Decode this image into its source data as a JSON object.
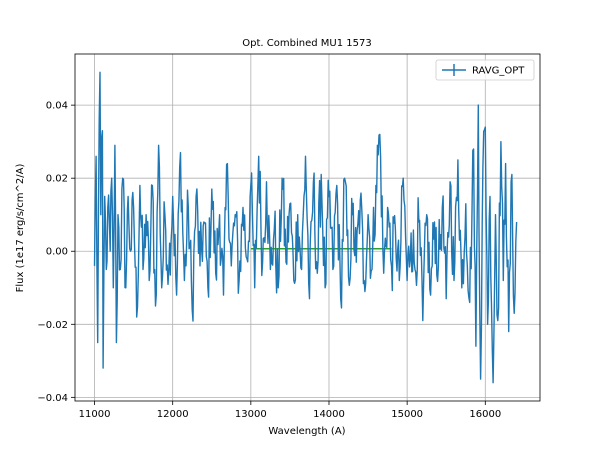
{
  "chart_data": {
    "type": "line",
    "title": "Opt. Combined MU1 1573",
    "xlabel": "Wavelength (A)",
    "ylabel": "Flux (1e17 erg/s/cm^2/A)",
    "xlim": [
      10750,
      16700
    ],
    "ylim": [
      -0.041,
      0.054
    ],
    "xticks": [
      11000,
      12000,
      13000,
      14000,
      15000,
      16000
    ],
    "yticks": [
      -0.04,
      -0.02,
      0.0,
      0.02,
      0.04
    ],
    "xtick_labels": [
      "11000",
      "12000",
      "13000",
      "14000",
      "15000",
      "16000"
    ],
    "ytick_labels": [
      "−0.04",
      "−0.02",
      "0.00",
      "0.02",
      "0.04"
    ],
    "grid": true,
    "legend_position": "upper right",
    "series": [
      {
        "name": "RAVG_OPT",
        "color": "#1f77b4",
        "x_range": [
          11000,
          16400
        ],
        "noise_amplitude": 0.012,
        "values": [
          [
            11000,
            -0.004
          ],
          [
            11020,
            0.026
          ],
          [
            11040,
            -0.025
          ],
          [
            11060,
            0.036
          ],
          [
            11070,
            0.049
          ],
          [
            11080,
            0.01
          ],
          [
            11100,
            0.033
          ],
          [
            11110,
            -0.032
          ],
          [
            11130,
            0.015
          ],
          [
            11150,
            -0.005
          ],
          [
            11170,
            0.012
          ],
          [
            11200,
            0.0
          ],
          [
            11220,
            0.02
          ],
          [
            11240,
            -0.01
          ],
          [
            11260,
            0.029
          ],
          [
            11280,
            -0.025
          ],
          [
            11300,
            0.01
          ],
          [
            11330,
            -0.005
          ],
          [
            11360,
            0.02
          ],
          [
            11400,
            -0.01
          ],
          [
            11430,
            0.015
          ],
          [
            11460,
            0.0
          ],
          [
            11500,
            0.012
          ],
          [
            11540,
            -0.018
          ],
          [
            11580,
            0.018
          ],
          [
            11620,
            -0.005
          ],
          [
            11660,
            0.01
          ],
          [
            11700,
            -0.008
          ],
          [
            11740,
            0.018
          ],
          [
            11780,
            -0.015
          ],
          [
            11820,
            0.029
          ],
          [
            11860,
            -0.01
          ],
          [
            11900,
            0.01
          ],
          [
            11950,
            -0.005
          ],
          [
            12000,
            0.015
          ],
          [
            12050,
            -0.012
          ],
          [
            12100,
            0.027
          ],
          [
            12150,
            -0.008
          ],
          [
            12200,
            0.012
          ],
          [
            12250,
            -0.016
          ],
          [
            12300,
            0.015
          ],
          [
            12350,
            -0.004
          ],
          [
            12400,
            0.008
          ],
          [
            12450,
            -0.01
          ],
          [
            12500,
            0.017
          ],
          [
            12550,
            -0.006
          ],
          [
            12600,
            0.01
          ],
          [
            12650,
            -0.012
          ],
          [
            12700,
            0.024
          ],
          [
            12750,
            -0.004
          ],
          [
            12800,
            0.01
          ],
          [
            12850,
            -0.008
          ],
          [
            12900,
            0.012
          ],
          [
            12950,
            -0.002
          ],
          [
            13000,
            0.018
          ],
          [
            13050,
            -0.01
          ],
          [
            13100,
            0.026
          ],
          [
            13150,
            -0.003
          ],
          [
            13200,
            0.019
          ],
          [
            13250,
            -0.005
          ],
          [
            13300,
            0.006
          ],
          [
            13350,
            -0.01
          ],
          [
            13400,
            0.02
          ],
          [
            13450,
            -0.003
          ],
          [
            13500,
            0.013
          ],
          [
            13550,
            -0.008
          ],
          [
            13600,
            0.01
          ],
          [
            13650,
            -0.005
          ],
          [
            13700,
            0.026
          ],
          [
            13750,
            -0.013
          ],
          [
            13800,
            0.019
          ],
          [
            13850,
            -0.006
          ],
          [
            13900,
            0.021
          ],
          [
            13950,
            -0.01
          ],
          [
            14000,
            0.015
          ],
          [
            14050,
            -0.005
          ],
          [
            14100,
            0.018
          ],
          [
            14150,
            -0.013
          ],
          [
            14200,
            0.02
          ],
          [
            14250,
            -0.007
          ],
          [
            14300,
            0.01
          ],
          [
            14350,
            -0.003
          ],
          [
            14400,
            0.014
          ],
          [
            14450,
            -0.008
          ],
          [
            14500,
            0.01
          ],
          [
            14550,
            -0.005
          ],
          [
            14600,
            0.018
          ],
          [
            14650,
            0.032
          ],
          [
            14700,
            -0.006
          ],
          [
            14750,
            0.012
          ],
          [
            14800,
            -0.004
          ],
          [
            14850,
            0.006
          ],
          [
            14900,
            -0.008
          ],
          [
            14950,
            0.02
          ],
          [
            15000,
            -0.008
          ],
          [
            15050,
            0.005
          ],
          [
            15100,
            -0.005
          ],
          [
            15150,
            0.008
          ],
          [
            15200,
            -0.019
          ],
          [
            15250,
            0.01
          ],
          [
            15300,
            -0.012
          ],
          [
            15350,
            0.008
          ],
          [
            15400,
            -0.004
          ],
          [
            15450,
            0.012
          ],
          [
            15500,
            -0.013
          ],
          [
            15550,
            0.019
          ],
          [
            15600,
            -0.008
          ],
          [
            15650,
            0.025
          ],
          [
            15700,
            -0.01
          ],
          [
            15750,
            0.013
          ],
          [
            15800,
            -0.014
          ],
          [
            15850,
            0.028
          ],
          [
            15880,
            -0.026
          ],
          [
            15910,
            0.04
          ],
          [
            15940,
            -0.035
          ],
          [
            15970,
            0.023
          ],
          [
            16000,
            0.034
          ],
          [
            16030,
            -0.02
          ],
          [
            16060,
            0.015
          ],
          [
            16100,
            -0.036
          ],
          [
            16130,
            0.01
          ],
          [
            16160,
            -0.019
          ],
          [
            16200,
            0.03
          ],
          [
            16230,
            -0.008
          ],
          [
            16260,
            0.024
          ],
          [
            16300,
            -0.022
          ],
          [
            16340,
            0.021
          ],
          [
            16370,
            -0.017
          ],
          [
            16400,
            0.008
          ]
        ]
      },
      {
        "name": "",
        "color": "#2ca02c",
        "values": [
          [
            13000,
            0.0007
          ],
          [
            14800,
            0.0007
          ]
        ]
      }
    ]
  }
}
